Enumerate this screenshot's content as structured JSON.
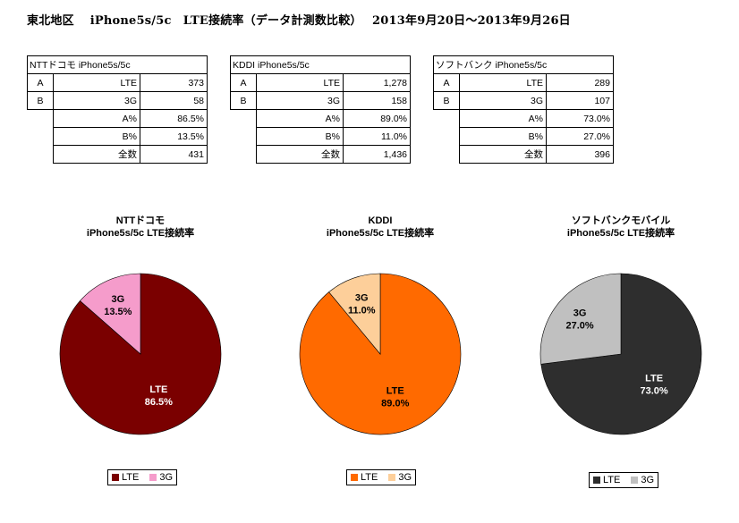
{
  "title": "東北地区　 iPhone5s/5c　LTE接続率（データ計測数比較）　 2013年9月20日～2013年9月26日",
  "tables": [
    {
      "header": "NTTドコモ iPhone5s/5c",
      "rows": [
        [
          "A",
          "LTE",
          "373"
        ],
        [
          "B",
          "3G",
          "58"
        ],
        [
          "",
          "A%",
          "86.5%"
        ],
        [
          "",
          "B%",
          "13.5%"
        ],
        [
          "",
          "全数",
          "431"
        ]
      ]
    },
    {
      "header": "KDDI iPhone5s/5c",
      "rows": [
        [
          "A",
          "LTE",
          "1,278"
        ],
        [
          "B",
          "3G",
          "158"
        ],
        [
          "",
          "A%",
          "89.0%"
        ],
        [
          "",
          "B%",
          "11.0%"
        ],
        [
          "",
          "全数",
          "1,436"
        ]
      ]
    },
    {
      "header": "ソフトバンク iPhone5s/5c",
      "rows": [
        [
          "A",
          "LTE",
          "289"
        ],
        [
          "B",
          "3G",
          "107"
        ],
        [
          "",
          "A%",
          "73.0%"
        ],
        [
          "",
          "B%",
          "27.0%"
        ],
        [
          "",
          "全数",
          "396"
        ]
      ]
    }
  ],
  "chart_data": [
    {
      "type": "pie",
      "title": [
        "NTTドコモ",
        "iPhone5s/5c LTE接続率"
      ],
      "slices": [
        {
          "label": "LTE",
          "value": 86.5,
          "display": "86.5%",
          "color": "#7a0000",
          "text_color": "#ffffff"
        },
        {
          "label": "3G",
          "value": 13.5,
          "display": "13.5%",
          "color": "#f59ccb",
          "text_color": "#000000"
        }
      ],
      "legend": [
        "LTE",
        "3G"
      ]
    },
    {
      "type": "pie",
      "title": [
        "KDDI",
        "iPhone5s/5c LTE接続率"
      ],
      "slices": [
        {
          "label": "LTE",
          "value": 89.0,
          "display": "89.0%",
          "color": "#ff6a00",
          "text_color": "#000000"
        },
        {
          "label": "3G",
          "value": 11.0,
          "display": "11.0%",
          "color": "#fdcf9a",
          "text_color": "#000000"
        }
      ],
      "legend": [
        "LTE",
        "3G"
      ]
    },
    {
      "type": "pie",
      "title": [
        "ソフトバンクモバイル",
        "iPhone5s/5c LTE接続率"
      ],
      "slices": [
        {
          "label": "LTE",
          "value": 73.0,
          "display": "73.0%",
          "color": "#2e2e2e",
          "text_color": "#ffffff"
        },
        {
          "label": "3G",
          "value": 27.0,
          "display": "27.0%",
          "color": "#c0c0c0",
          "text_color": "#000000"
        }
      ],
      "legend": [
        "LTE",
        "3G"
      ]
    }
  ]
}
